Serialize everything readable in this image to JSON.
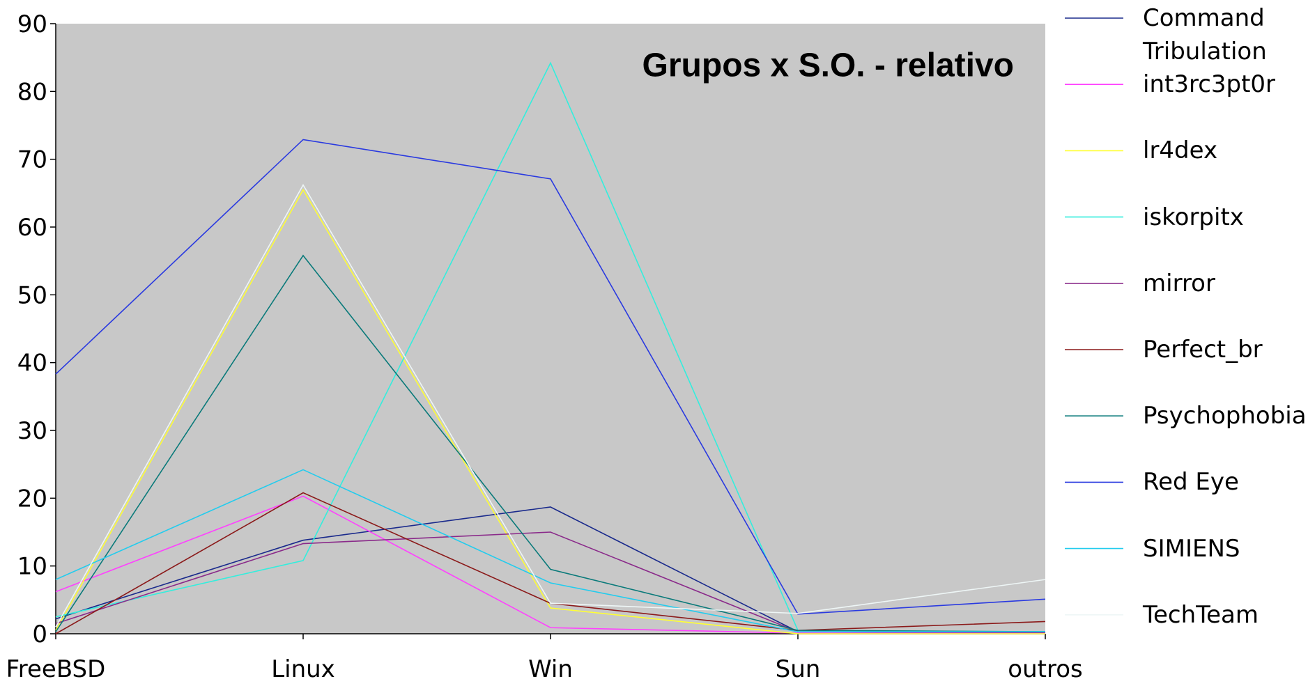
{
  "chart_data": {
    "type": "line",
    "title": "Grupos x S.O. - relativo",
    "categories": [
      "FreeBSD",
      "Linux",
      "Win",
      "Sun",
      "outros"
    ],
    "series": [
      {
        "name": "Command Tribulation",
        "color": "#1a2a8c",
        "values": [
          2.2,
          13.8,
          18.7,
          0.3,
          0.2
        ]
      },
      {
        "name": "int3rc3pt0r",
        "color": "#ff40ff",
        "values": [
          6.2,
          20.3,
          0.9,
          0.1,
          0.1
        ]
      },
      {
        "name": "lr4dex",
        "color": "#ffff33",
        "values": [
          0.5,
          65.5,
          3.8,
          0,
          0
        ]
      },
      {
        "name": "iskorpitx",
        "color": "#33eedd",
        "values": [
          2.5,
          10.8,
          84.2,
          0.5,
          0.3
        ]
      },
      {
        "name": "mirror",
        "color": "#8a2a8a",
        "values": [
          1.5,
          13.3,
          15,
          0.3,
          0.2
        ]
      },
      {
        "name": "Perfect_br",
        "color": "#8b1a1a",
        "values": [
          0,
          20.8,
          4.5,
          0.5,
          1.8
        ]
      },
      {
        "name": "Psychophobia",
        "color": "#0a7a7a",
        "values": [
          0.3,
          55.8,
          9.5,
          0.5,
          0.3
        ]
      },
      {
        "name": "Red Eye",
        "color": "#2a3ae0",
        "values": [
          38.3,
          72.9,
          67.1,
          2.9,
          5.1
        ]
      },
      {
        "name": "SIMIENS",
        "color": "#22ccee",
        "values": [
          8,
          24.2,
          7.5,
          0.3,
          0.3
        ]
      },
      {
        "name": "TechTeam",
        "color": "#eef6f6",
        "values": [
          1,
          66.2,
          4.5,
          3,
          8
        ]
      }
    ],
    "ylim": [
      0,
      90
    ],
    "yticks": [
      0,
      10,
      20,
      30,
      40,
      50,
      60,
      70,
      80,
      90
    ],
    "grid": false
  }
}
